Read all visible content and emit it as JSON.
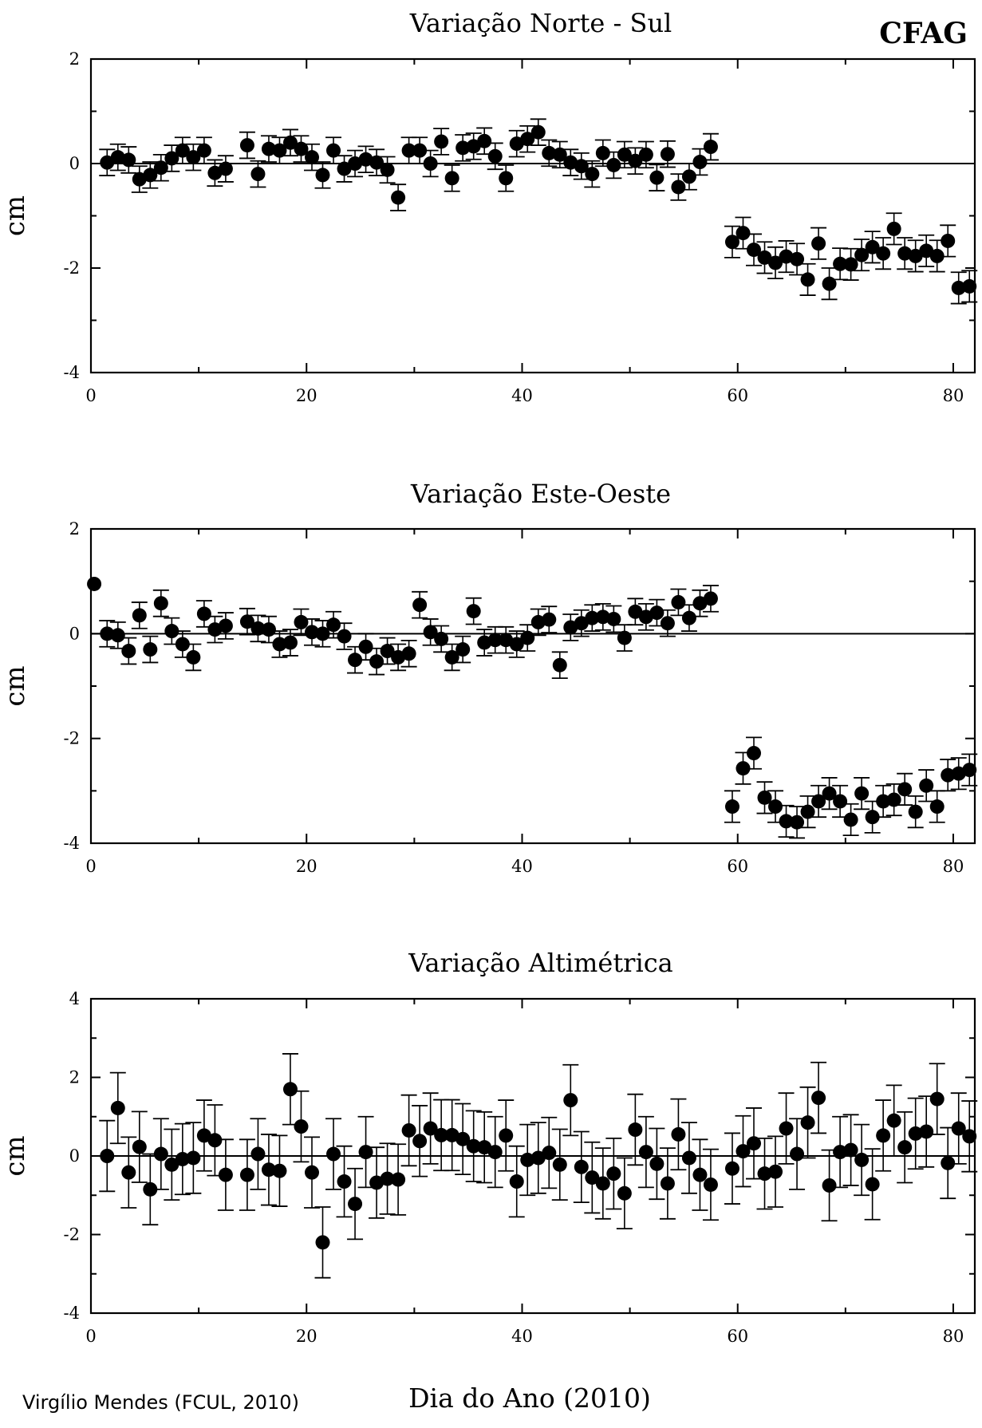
{
  "figure": {
    "station": "CFAG",
    "xlabel": "Dia do Ano (2010)",
    "credit": "Virgílio Mendes (FCUL, 2010)"
  },
  "chart_data": [
    {
      "type": "scatter",
      "title": "Variação Norte - Sul",
      "ylabel": "cm",
      "xlim": [
        0,
        82
      ],
      "ylim": [
        -4,
        2
      ],
      "xticks": [
        0,
        20,
        40,
        60,
        80
      ],
      "yticks": [
        -4,
        -2,
        0,
        2
      ],
      "zero_line": true,
      "error_bars": true,
      "points": [
        [
          1.5,
          0.02,
          0.25
        ],
        [
          2.5,
          0.12,
          0.25
        ],
        [
          3.5,
          0.07,
          0.25
        ],
        [
          4.5,
          -0.3,
          0.25
        ],
        [
          5.5,
          -0.22,
          0.25
        ],
        [
          6.5,
          -0.08,
          0.25
        ],
        [
          7.5,
          0.1,
          0.25
        ],
        [
          8.5,
          0.25,
          0.25
        ],
        [
          9.5,
          0.12,
          0.25
        ],
        [
          10.5,
          0.25,
          0.25
        ],
        [
          11.5,
          -0.18,
          0.25
        ],
        [
          12.5,
          -0.1,
          0.25
        ],
        [
          14.5,
          0.35,
          0.25
        ],
        [
          15.5,
          -0.2,
          0.25
        ],
        [
          16.5,
          0.28,
          0.25
        ],
        [
          17.5,
          0.25,
          0.25
        ],
        [
          18.5,
          0.4,
          0.25
        ],
        [
          19.5,
          0.28,
          0.25
        ],
        [
          20.5,
          0.12,
          0.25
        ],
        [
          21.5,
          -0.22,
          0.25
        ],
        [
          22.5,
          0.25,
          0.25
        ],
        [
          23.5,
          -0.1,
          0.25
        ],
        [
          24.5,
          0.0,
          0.25
        ],
        [
          25.5,
          0.08,
          0.25
        ],
        [
          26.5,
          0.02,
          0.25
        ],
        [
          27.5,
          -0.12,
          0.25
        ],
        [
          28.5,
          -0.65,
          0.25
        ],
        [
          29.5,
          0.25,
          0.25
        ],
        [
          30.5,
          0.25,
          0.25
        ],
        [
          31.5,
          0.0,
          0.25
        ],
        [
          32.5,
          0.42,
          0.25
        ],
        [
          33.5,
          -0.28,
          0.25
        ],
        [
          34.5,
          0.3,
          0.25
        ],
        [
          35.5,
          0.33,
          0.25
        ],
        [
          36.5,
          0.43,
          0.25
        ],
        [
          37.5,
          0.14,
          0.25
        ],
        [
          38.5,
          -0.28,
          0.25
        ],
        [
          39.5,
          0.38,
          0.25
        ],
        [
          40.5,
          0.47,
          0.25
        ],
        [
          41.5,
          0.6,
          0.25
        ],
        [
          42.5,
          0.2,
          0.25
        ],
        [
          43.5,
          0.17,
          0.25
        ],
        [
          44.5,
          0.02,
          0.25
        ],
        [
          45.5,
          -0.05,
          0.25
        ],
        [
          46.5,
          -0.2,
          0.25
        ],
        [
          47.5,
          0.2,
          0.25
        ],
        [
          48.5,
          -0.03,
          0.25
        ],
        [
          49.5,
          0.17,
          0.25
        ],
        [
          50.5,
          0.05,
          0.25
        ],
        [
          51.5,
          0.17,
          0.25
        ],
        [
          52.5,
          -0.27,
          0.25
        ],
        [
          53.5,
          0.18,
          0.25
        ],
        [
          54.5,
          -0.45,
          0.25
        ],
        [
          55.5,
          -0.25,
          0.25
        ],
        [
          56.5,
          0.03,
          0.25
        ],
        [
          57.5,
          0.32,
          0.25
        ],
        [
          59.5,
          -1.5,
          0.3
        ],
        [
          60.5,
          -1.33,
          0.3
        ],
        [
          61.5,
          -1.65,
          0.3
        ],
        [
          62.5,
          -1.8,
          0.3
        ],
        [
          63.5,
          -1.9,
          0.3
        ],
        [
          64.5,
          -1.78,
          0.3
        ],
        [
          65.5,
          -1.83,
          0.3
        ],
        [
          66.5,
          -2.22,
          0.3
        ],
        [
          67.5,
          -1.53,
          0.3
        ],
        [
          68.5,
          -2.3,
          0.3
        ],
        [
          69.5,
          -1.92,
          0.3
        ],
        [
          70.5,
          -1.93,
          0.3
        ],
        [
          71.5,
          -1.75,
          0.3
        ],
        [
          72.5,
          -1.6,
          0.3
        ],
        [
          73.5,
          -1.72,
          0.3
        ],
        [
          74.5,
          -1.25,
          0.3
        ],
        [
          75.5,
          -1.72,
          0.3
        ],
        [
          76.5,
          -1.77,
          0.3
        ],
        [
          77.5,
          -1.67,
          0.3
        ],
        [
          78.5,
          -1.77,
          0.3
        ],
        [
          79.5,
          -1.48,
          0.3
        ],
        [
          80.5,
          -2.38,
          0.3
        ],
        [
          81.5,
          -2.35,
          0.3
        ]
      ]
    },
    {
      "type": "scatter",
      "title": "Variação Este-Oeste",
      "ylabel": "cm",
      "xlim": [
        0,
        82
      ],
      "ylim": [
        -4,
        2
      ],
      "xticks": [
        0,
        20,
        40,
        60,
        80
      ],
      "yticks": [
        -4,
        -2,
        0,
        2
      ],
      "zero_line": true,
      "error_bars": true,
      "points": [
        [
          0.3,
          0.95,
          0
        ],
        [
          1.5,
          0.0,
          0.25
        ],
        [
          2.5,
          -0.03,
          0.25
        ],
        [
          3.5,
          -0.33,
          0.25
        ],
        [
          4.5,
          0.35,
          0.25
        ],
        [
          5.5,
          -0.3,
          0.25
        ],
        [
          6.5,
          0.58,
          0.25
        ],
        [
          7.5,
          0.05,
          0.25
        ],
        [
          8.5,
          -0.2,
          0.25
        ],
        [
          9.5,
          -0.45,
          0.25
        ],
        [
          10.5,
          0.38,
          0.25
        ],
        [
          11.5,
          0.08,
          0.25
        ],
        [
          12.5,
          0.15,
          0.25
        ],
        [
          14.5,
          0.23,
          0.25
        ],
        [
          15.5,
          0.1,
          0.25
        ],
        [
          16.5,
          0.08,
          0.25
        ],
        [
          17.5,
          -0.2,
          0.25
        ],
        [
          18.5,
          -0.17,
          0.25
        ],
        [
          19.5,
          0.22,
          0.25
        ],
        [
          20.5,
          0.03,
          0.25
        ],
        [
          21.5,
          0.0,
          0.25
        ],
        [
          22.5,
          0.17,
          0.25
        ],
        [
          23.5,
          -0.05,
          0.25
        ],
        [
          24.5,
          -0.5,
          0.25
        ],
        [
          25.5,
          -0.25,
          0.25
        ],
        [
          26.5,
          -0.53,
          0.25
        ],
        [
          27.5,
          -0.33,
          0.25
        ],
        [
          28.5,
          -0.45,
          0.25
        ],
        [
          29.5,
          -0.38,
          0.25
        ],
        [
          30.5,
          0.55,
          0.25
        ],
        [
          31.5,
          0.03,
          0.25
        ],
        [
          32.5,
          -0.1,
          0.25
        ],
        [
          33.5,
          -0.45,
          0.25
        ],
        [
          34.5,
          -0.3,
          0.25
        ],
        [
          35.5,
          0.43,
          0.25
        ],
        [
          36.5,
          -0.17,
          0.25
        ],
        [
          37.5,
          -0.12,
          0.25
        ],
        [
          38.5,
          -0.12,
          0.25
        ],
        [
          39.5,
          -0.2,
          0.25
        ],
        [
          40.5,
          -0.08,
          0.25
        ],
        [
          41.5,
          0.22,
          0.25
        ],
        [
          42.5,
          0.27,
          0.25
        ],
        [
          43.5,
          -0.6,
          0.25
        ],
        [
          44.5,
          0.12,
          0.25
        ],
        [
          45.5,
          0.2,
          0.25
        ],
        [
          46.5,
          0.3,
          0.25
        ],
        [
          47.5,
          0.32,
          0.25
        ],
        [
          48.5,
          0.28,
          0.25
        ],
        [
          49.5,
          -0.08,
          0.25
        ],
        [
          50.5,
          0.42,
          0.25
        ],
        [
          51.5,
          0.32,
          0.25
        ],
        [
          52.5,
          0.4,
          0.25
        ],
        [
          53.5,
          0.2,
          0.25
        ],
        [
          54.5,
          0.6,
          0.25
        ],
        [
          55.5,
          0.3,
          0.25
        ],
        [
          56.5,
          0.58,
          0.25
        ],
        [
          57.5,
          0.67,
          0.25
        ],
        [
          59.5,
          -3.3,
          0.3
        ],
        [
          60.5,
          -2.57,
          0.3
        ],
        [
          61.5,
          -2.28,
          0.3
        ],
        [
          62.5,
          -3.13,
          0.3
        ],
        [
          63.5,
          -3.3,
          0.3
        ],
        [
          64.5,
          -3.58,
          0.3
        ],
        [
          65.5,
          -3.6,
          0.3
        ],
        [
          66.5,
          -3.4,
          0.3
        ],
        [
          67.5,
          -3.2,
          0.3
        ],
        [
          68.5,
          -3.05,
          0.3
        ],
        [
          69.5,
          -3.2,
          0.3
        ],
        [
          70.5,
          -3.55,
          0.3
        ],
        [
          71.5,
          -3.05,
          0.3
        ],
        [
          72.5,
          -3.5,
          0.3
        ],
        [
          73.5,
          -3.2,
          0.3
        ],
        [
          74.5,
          -3.17,
          0.3
        ],
        [
          75.5,
          -2.97,
          0.3
        ],
        [
          76.5,
          -3.4,
          0.3
        ],
        [
          77.5,
          -2.9,
          0.3
        ],
        [
          78.5,
          -3.3,
          0.3
        ],
        [
          79.5,
          -2.7,
          0.3
        ],
        [
          80.5,
          -2.67,
          0.3
        ],
        [
          81.5,
          -2.6,
          0.3
        ]
      ]
    },
    {
      "type": "scatter",
      "title": "Variação Altimétrica",
      "ylabel": "cm",
      "xlim": [
        0,
        82
      ],
      "ylim": [
        -4,
        4
      ],
      "xticks": [
        0,
        20,
        40,
        60,
        80
      ],
      "yticks": [
        -4,
        -2,
        0,
        2,
        4
      ],
      "zero_line": true,
      "error_bars": true,
      "points": [
        [
          1.5,
          0.0,
          0.9
        ],
        [
          2.5,
          1.22,
          0.9
        ],
        [
          3.5,
          -0.42,
          0.9
        ],
        [
          4.5,
          0.23,
          0.9
        ],
        [
          5.5,
          -0.85,
          0.9
        ],
        [
          6.5,
          0.05,
          0.9
        ],
        [
          7.5,
          -0.22,
          0.9
        ],
        [
          8.5,
          -0.08,
          0.9
        ],
        [
          9.5,
          -0.05,
          0.9
        ],
        [
          10.5,
          0.52,
          0.9
        ],
        [
          11.5,
          0.4,
          0.9
        ],
        [
          12.5,
          -0.48,
          0.9
        ],
        [
          14.5,
          -0.48,
          0.9
        ],
        [
          15.5,
          0.05,
          0.9
        ],
        [
          16.5,
          -0.35,
          0.9
        ],
        [
          17.5,
          -0.38,
          0.9
        ],
        [
          18.5,
          1.7,
          0.9
        ],
        [
          19.5,
          0.75,
          0.9
        ],
        [
          20.5,
          -0.42,
          0.9
        ],
        [
          21.5,
          -2.2,
          0.9
        ],
        [
          22.5,
          0.05,
          0.9
        ],
        [
          23.5,
          -0.65,
          0.9
        ],
        [
          24.5,
          -1.22,
          0.9
        ],
        [
          25.5,
          0.1,
          0.9
        ],
        [
          26.5,
          -0.68,
          0.9
        ],
        [
          27.5,
          -0.58,
          0.9
        ],
        [
          28.5,
          -0.6,
          0.9
        ],
        [
          29.5,
          0.65,
          0.9
        ],
        [
          30.5,
          0.38,
          0.9
        ],
        [
          31.5,
          0.7,
          0.9
        ],
        [
          32.5,
          0.53,
          0.9
        ],
        [
          33.5,
          0.53,
          0.9
        ],
        [
          34.5,
          0.43,
          0.9
        ],
        [
          35.5,
          0.25,
          0.9
        ],
        [
          36.5,
          0.22,
          0.9
        ],
        [
          37.5,
          0.1,
          0.9
        ],
        [
          38.5,
          0.52,
          0.9
        ],
        [
          39.5,
          -0.65,
          0.9
        ],
        [
          40.5,
          -0.1,
          0.9
        ],
        [
          41.5,
          -0.05,
          0.9
        ],
        [
          42.5,
          0.08,
          0.9
        ],
        [
          43.5,
          -0.22,
          0.9
        ],
        [
          44.5,
          1.42,
          0.9
        ],
        [
          45.5,
          -0.28,
          0.9
        ],
        [
          46.5,
          -0.55,
          0.9
        ],
        [
          47.5,
          -0.7,
          0.9
        ],
        [
          48.5,
          -0.45,
          0.9
        ],
        [
          49.5,
          -0.95,
          0.9
        ],
        [
          50.5,
          0.67,
          0.9
        ],
        [
          51.5,
          0.1,
          0.9
        ],
        [
          52.5,
          -0.2,
          0.9
        ],
        [
          53.5,
          -0.7,
          0.9
        ],
        [
          54.5,
          0.55,
          0.9
        ],
        [
          55.5,
          -0.05,
          0.9
        ],
        [
          56.5,
          -0.48,
          0.9
        ],
        [
          57.5,
          -0.73,
          0.9
        ],
        [
          59.5,
          -0.32,
          0.9
        ],
        [
          60.5,
          0.12,
          0.9
        ],
        [
          61.5,
          0.32,
          0.9
        ],
        [
          62.5,
          -0.45,
          0.9
        ],
        [
          63.5,
          -0.4,
          0.9
        ],
        [
          64.5,
          0.7,
          0.9
        ],
        [
          65.5,
          0.05,
          0.9
        ],
        [
          66.5,
          0.85,
          0.9
        ],
        [
          67.5,
          1.48,
          0.9
        ],
        [
          68.5,
          -0.75,
          0.9
        ],
        [
          69.5,
          0.1,
          0.9
        ],
        [
          70.5,
          0.15,
          0.9
        ],
        [
          71.5,
          -0.1,
          0.9
        ],
        [
          72.5,
          -0.72,
          0.9
        ],
        [
          73.5,
          0.52,
          0.9
        ],
        [
          74.5,
          0.9,
          0.9
        ],
        [
          75.5,
          0.22,
          0.9
        ],
        [
          76.5,
          0.57,
          0.9
        ],
        [
          77.5,
          0.62,
          0.9
        ],
        [
          78.5,
          1.45,
          0.9
        ],
        [
          79.5,
          -0.18,
          0.9
        ],
        [
          80.5,
          0.7,
          0.9
        ],
        [
          81.5,
          0.5,
          0.9
        ]
      ]
    }
  ]
}
